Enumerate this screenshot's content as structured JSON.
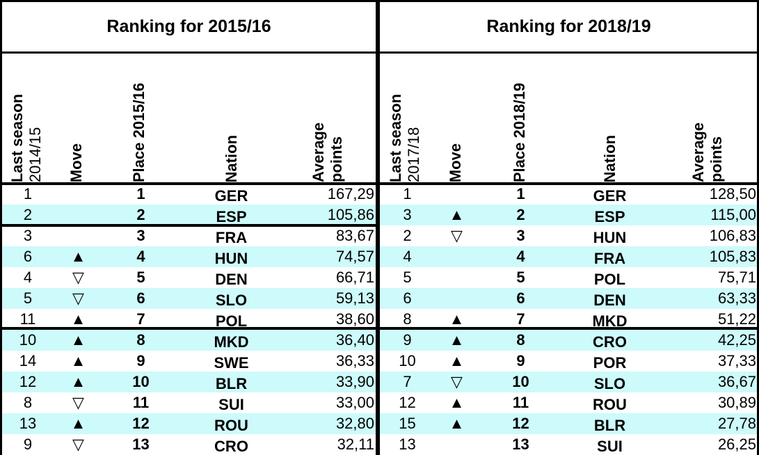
{
  "left": {
    "title": "Ranking for 2015/16",
    "headers": {
      "last_season_line1": "Last season",
      "last_season_line2": "2014/15",
      "move": "Move",
      "place": "Place 2015/16",
      "nation": "Nation",
      "avg_line1": "Average",
      "avg_line2": "points"
    },
    "rows": [
      {
        "last": "1",
        "move": "",
        "place": "1",
        "nation": "GER",
        "avg": "167,29"
      },
      {
        "last": "2",
        "move": "",
        "place": "2",
        "nation": "ESP",
        "avg": "105,86"
      },
      {
        "last": "3",
        "move": "",
        "place": "3",
        "nation": "FRA",
        "avg": "83,67"
      },
      {
        "last": "6",
        "move": "▲",
        "place": "4",
        "nation": "HUN",
        "avg": "74,57"
      },
      {
        "last": "4",
        "move": "▽",
        "place": "5",
        "nation": "DEN",
        "avg": "66,71"
      },
      {
        "last": "5",
        "move": "▽",
        "place": "6",
        "nation": "SLO",
        "avg": "59,13"
      },
      {
        "last": "11",
        "move": "▲",
        "place": "7",
        "nation": "POL",
        "avg": "38,60"
      },
      {
        "last": "10",
        "move": "▲",
        "place": "8",
        "nation": "MKD",
        "avg": "36,40"
      },
      {
        "last": "14",
        "move": "▲",
        "place": "9",
        "nation": "SWE",
        "avg": "36,33"
      },
      {
        "last": "12",
        "move": "▲",
        "place": "10",
        "nation": "BLR",
        "avg": "33,90"
      },
      {
        "last": "8",
        "move": "▽",
        "place": "11",
        "nation": "SUI",
        "avg": "33,00"
      },
      {
        "last": "13",
        "move": "▲",
        "place": "12",
        "nation": "ROU",
        "avg": "32,80"
      },
      {
        "last": "9",
        "move": "▽",
        "place": "13",
        "nation": "CRO",
        "avg": "32,11"
      }
    ]
  },
  "right": {
    "title": "Ranking for 2018/19",
    "headers": {
      "last_season_line1": "Last season",
      "last_season_line2": "2017/18",
      "move": "Move",
      "place": "Place 2018/19",
      "nation": "Nation",
      "avg_line1": "Average",
      "avg_line2": "points"
    },
    "rows": [
      {
        "last": "1",
        "move": "",
        "place": "1",
        "nation": "GER",
        "avg": "128,50"
      },
      {
        "last": "3",
        "move": "▲",
        "place": "2",
        "nation": "ESP",
        "avg": "115,00"
      },
      {
        "last": "2",
        "move": "▽",
        "place": "3",
        "nation": "HUN",
        "avg": "106,83"
      },
      {
        "last": "4",
        "move": "",
        "place": "4",
        "nation": "FRA",
        "avg": "105,83"
      },
      {
        "last": "5",
        "move": "",
        "place": "5",
        "nation": "POL",
        "avg": "75,71"
      },
      {
        "last": "6",
        "move": "",
        "place": "6",
        "nation": "DEN",
        "avg": "63,33"
      },
      {
        "last": "8",
        "move": "▲",
        "place": "7",
        "nation": "MKD",
        "avg": "51,22"
      },
      {
        "last": "9",
        "move": "▲",
        "place": "8",
        "nation": "CRO",
        "avg": "42,25"
      },
      {
        "last": "10",
        "move": "▲",
        "place": "9",
        "nation": "POR",
        "avg": "37,33"
      },
      {
        "last": "7",
        "move": "▽",
        "place": "10",
        "nation": "SLO",
        "avg": "36,67"
      },
      {
        "last": "12",
        "move": "▲",
        "place": "11",
        "nation": "ROU",
        "avg": "30,89"
      },
      {
        "last": "15",
        "move": "▲",
        "place": "12",
        "nation": "BLR",
        "avg": "27,78"
      },
      {
        "last": "13",
        "move": "",
        "place": "13",
        "nation": "SUI",
        "avg": "26,25"
      }
    ]
  },
  "colors": {
    "row_shade": "#cdfafa",
    "border": "#000000"
  }
}
